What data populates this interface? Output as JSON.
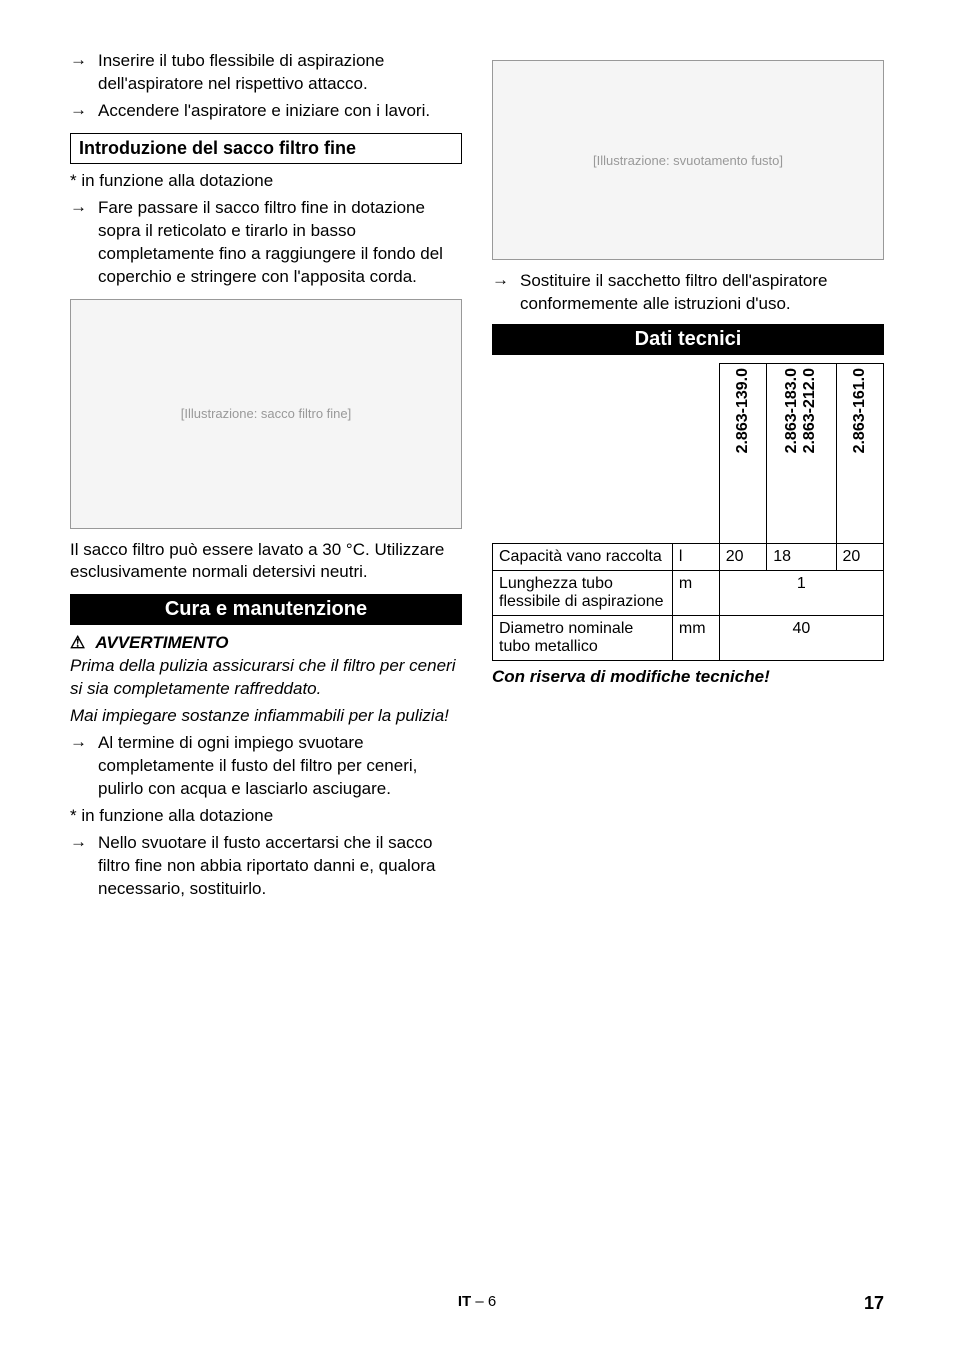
{
  "left": {
    "bullets_top": [
      "Inserire il tubo flessibile di aspirazione dell'aspiratore nel rispettivo attacco.",
      "Accendere l'aspiratore e iniziare con i lavori."
    ],
    "subheading": "Introduzione del sacco filtro fine",
    "footnote1": "* in funzione alla dotazione",
    "bullets_mid": [
      "Fare passare il sacco filtro fine in dotazione sopra il reticolato e tirarlo in basso completamente fino a raggiungere il fondo del coperchio e stringere con l'apposita corda."
    ],
    "illus1_alt": "[Illustrazione: sacco filtro fine]",
    "caption1": "Il sacco filtro può essere lavato a 30 °C. Utilizzare esclusivamente normali detersivi neutri.",
    "heading2": "Cura e manutenzione",
    "warn_icon": "⚠",
    "warn_label": "AVVERTIMENTO",
    "italic1": "Prima della pulizia assicurarsi che il filtro per ceneri si sia completamente raffreddato.",
    "italic2": "Mai impiegare sostanze infiammabili per la pulizia!",
    "bullets_bot1": [
      "Al termine di ogni impiego svuotare completamente il fusto del filtro per ceneri, pulirlo con acqua e lasciarlo asciugare."
    ],
    "footnote2": "* in funzione alla dotazione",
    "bullets_bot2": [
      "Nello svuotare il fusto accertarsi che il sacco filtro fine non abbia riportato danni e, qualora necessario, sostituirlo."
    ]
  },
  "right": {
    "illus2_alt": "[Illustrazione: svuotamento fusto]",
    "bullets_top": [
      "Sostituire il sacchetto filtro dell'aspiratore conformemente alle istruzioni d'uso."
    ],
    "heading": "Dati tecnici",
    "table": {
      "col_headers": [
        "2.863-139.0",
        "2.863-183.0\n2.863-212.0",
        "2.863-161.0"
      ],
      "rows": [
        {
          "label": "Capacità vano raccolta",
          "unit": "l",
          "vals": [
            "20",
            "18",
            "20"
          ],
          "span": false
        },
        {
          "label": "Lunghezza tubo flessibile di aspirazione",
          "unit": "m",
          "vals": [
            "1"
          ],
          "span": true
        },
        {
          "label": "Diametro nominale tubo metallico",
          "unit": "mm",
          "vals": [
            "40"
          ],
          "span": true
        }
      ]
    },
    "note": "Con riserva di modifiche tecniche!"
  },
  "footer": {
    "lang": "IT",
    "page_rel": "– 6",
    "page_abs": "17"
  },
  "style": {
    "illus1_height": 230,
    "illus2_height": 200
  }
}
